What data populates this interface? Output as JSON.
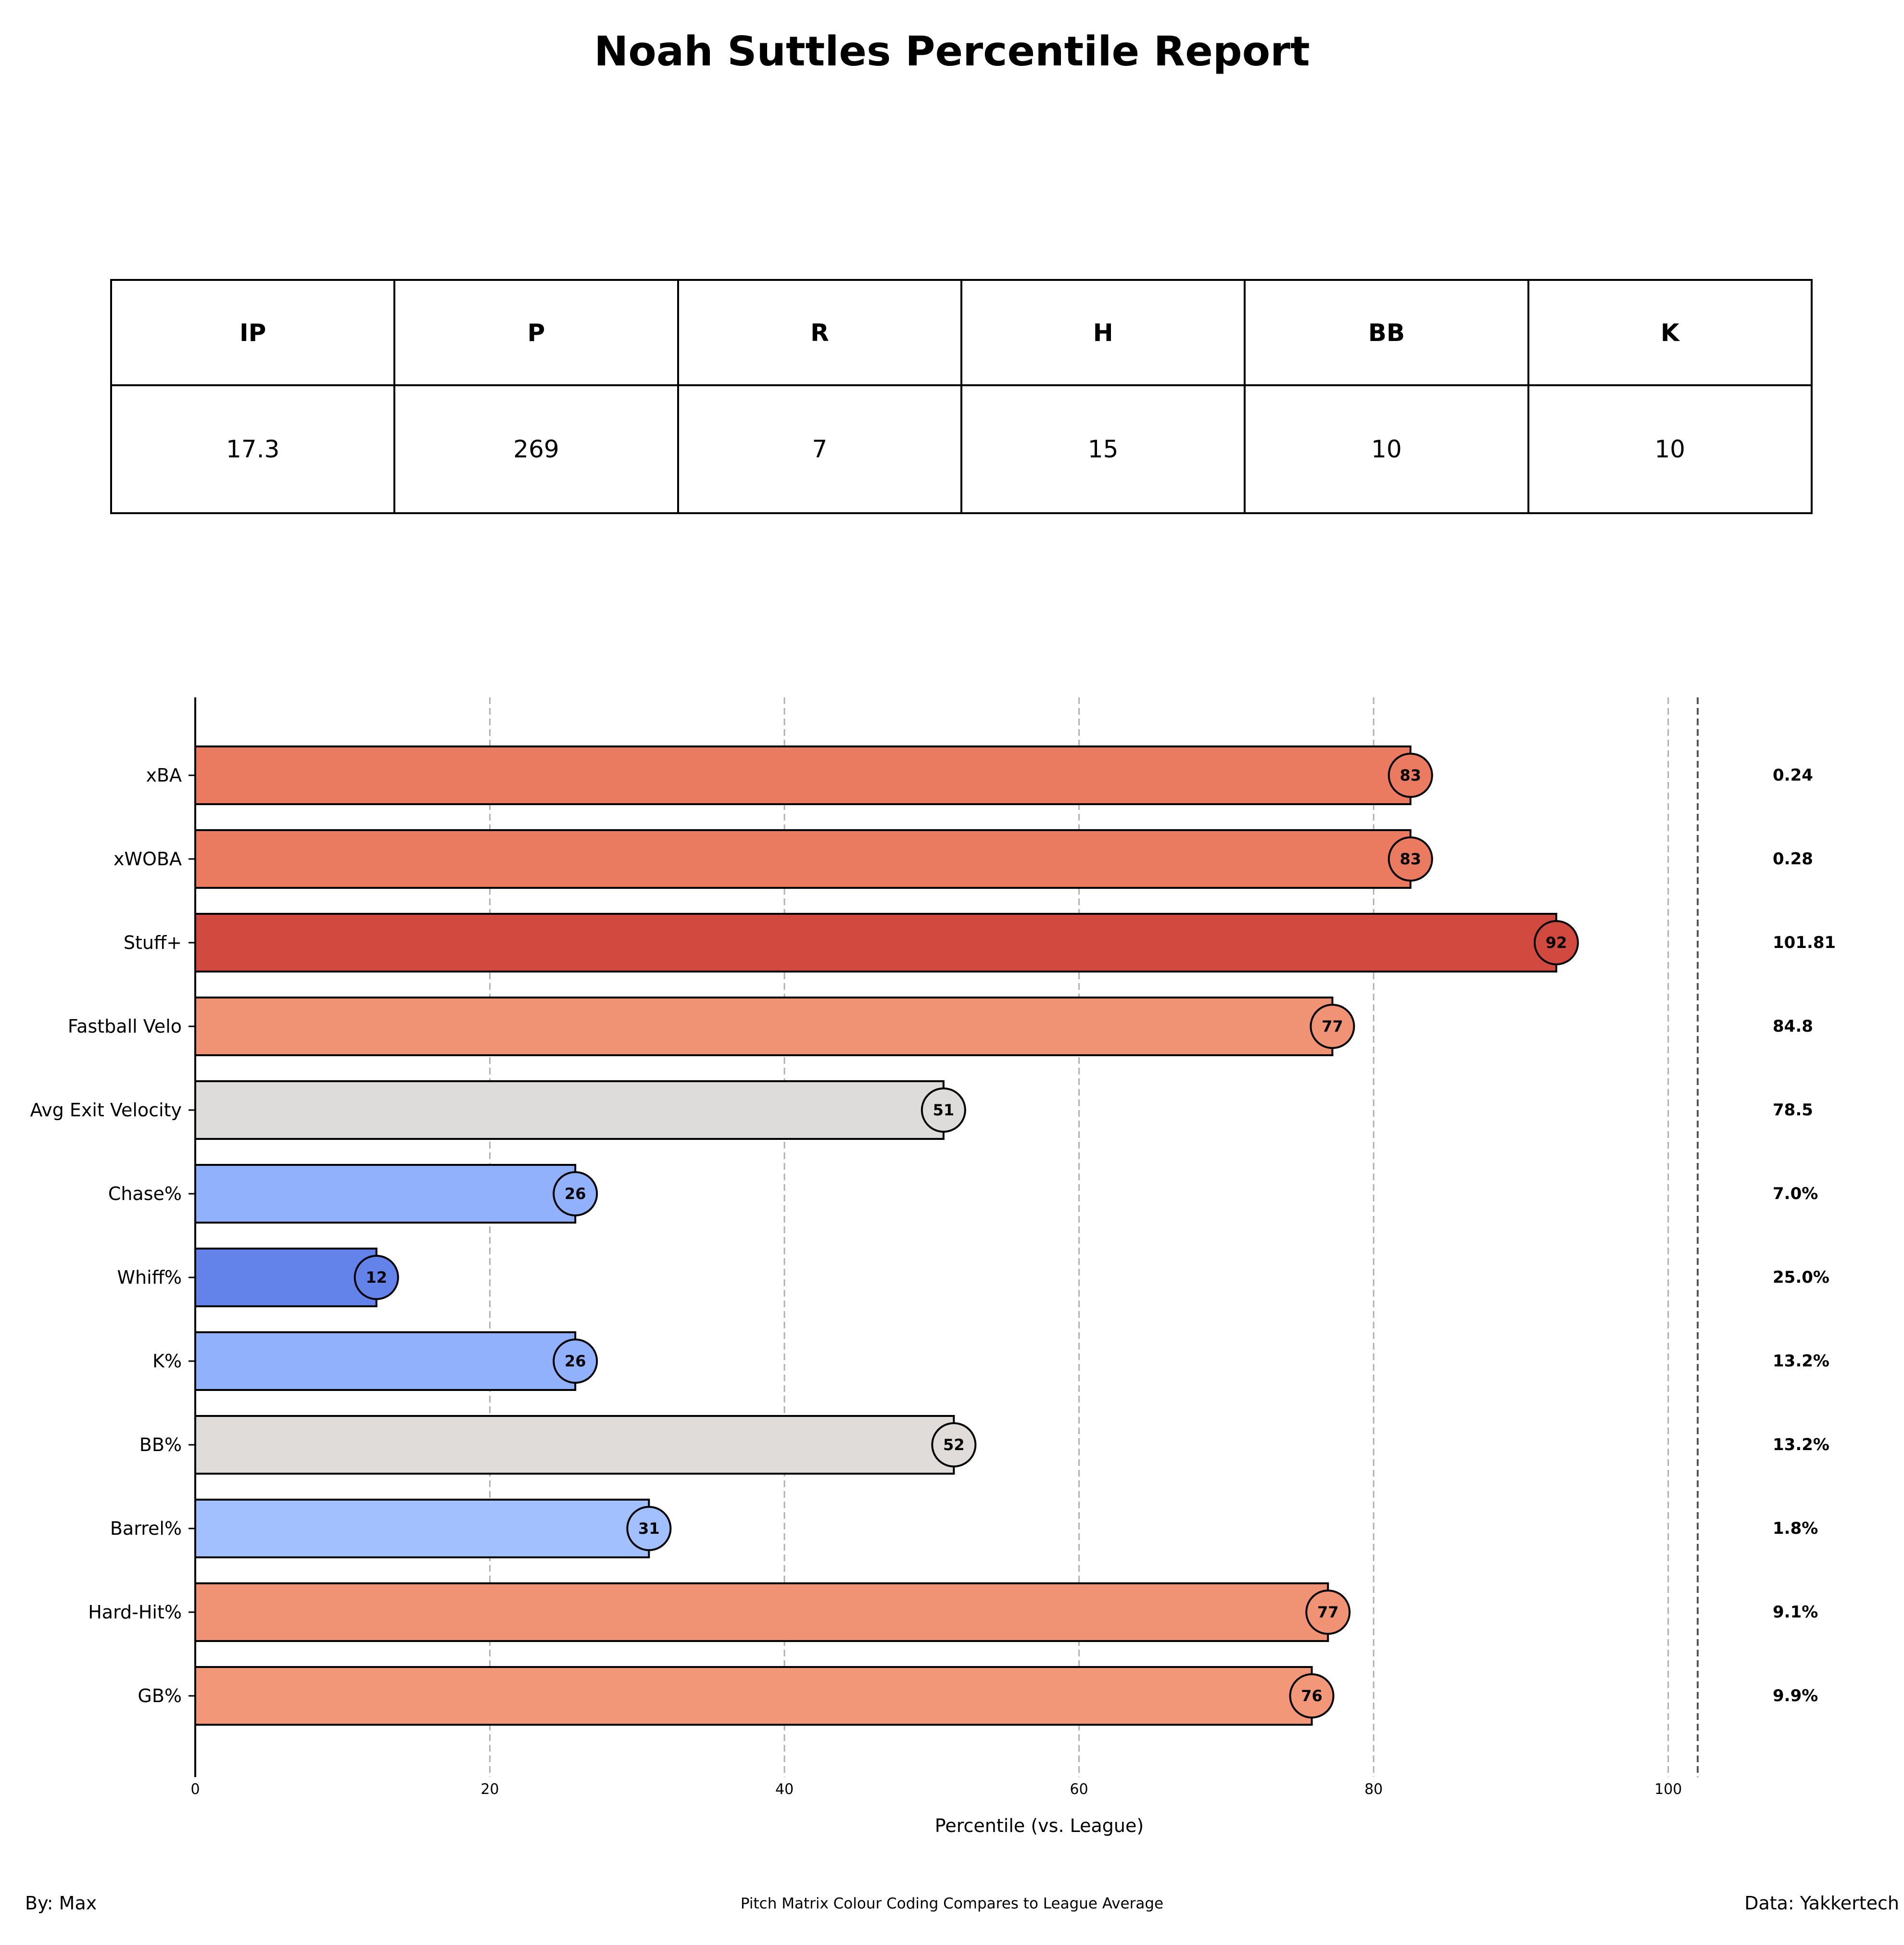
{
  "title": "Noah Suttles Percentile Report",
  "stats_table": {
    "headers": [
      "IP",
      "P",
      "R",
      "H",
      "BB",
      "K"
    ],
    "values": [
      "17.3",
      "269",
      "7",
      "15",
      "10",
      "10"
    ]
  },
  "chart_data": {
    "type": "bar",
    "orientation": "horizontal",
    "title": "",
    "xlabel": "Percentile (vs. League)",
    "ylabel": "",
    "xlim": [
      0,
      102
    ],
    "xticks": [
      0,
      20,
      40,
      60,
      80,
      100
    ],
    "grid": "vertical dashed",
    "categories": [
      "xBA",
      "xWOBA",
      "Stuff+",
      "Fastball Velo",
      "Avg Exit Velocity",
      "Chase%",
      "Whiff%",
      "K%",
      "BB%",
      "Barrel%",
      "Hard-Hit%",
      "GB%"
    ],
    "values": [
      82.5,
      82.5,
      92.4,
      77.2,
      50.8,
      25.8,
      12.3,
      25.8,
      51.5,
      30.8,
      76.9,
      75.8
    ],
    "percentile_labels": [
      "83",
      "83",
      "92",
      "77",
      "51",
      "26",
      "12",
      "26",
      "52",
      "31",
      "77",
      "76"
    ],
    "stat_values": [
      "0.24",
      "0.28",
      "101.81",
      "84.8",
      "78.5",
      "7.0%",
      "25.0%",
      "13.2%",
      "13.2%",
      "1.8%",
      "9.1%",
      "9.9%"
    ],
    "colors": [
      "#ea7a60",
      "#ea7a60",
      "#d1493f",
      "#f09274",
      "#dddcdb",
      "#92b1fd",
      "#6483ea",
      "#92b1fd",
      "#e0dcda",
      "#a2c0fe",
      "#f09274",
      "#f29878"
    ]
  },
  "footer": {
    "left": "By: Max",
    "center": "Pitch Matrix Colour Coding Compares to League Average",
    "right": "Data: Yakkertech"
  }
}
